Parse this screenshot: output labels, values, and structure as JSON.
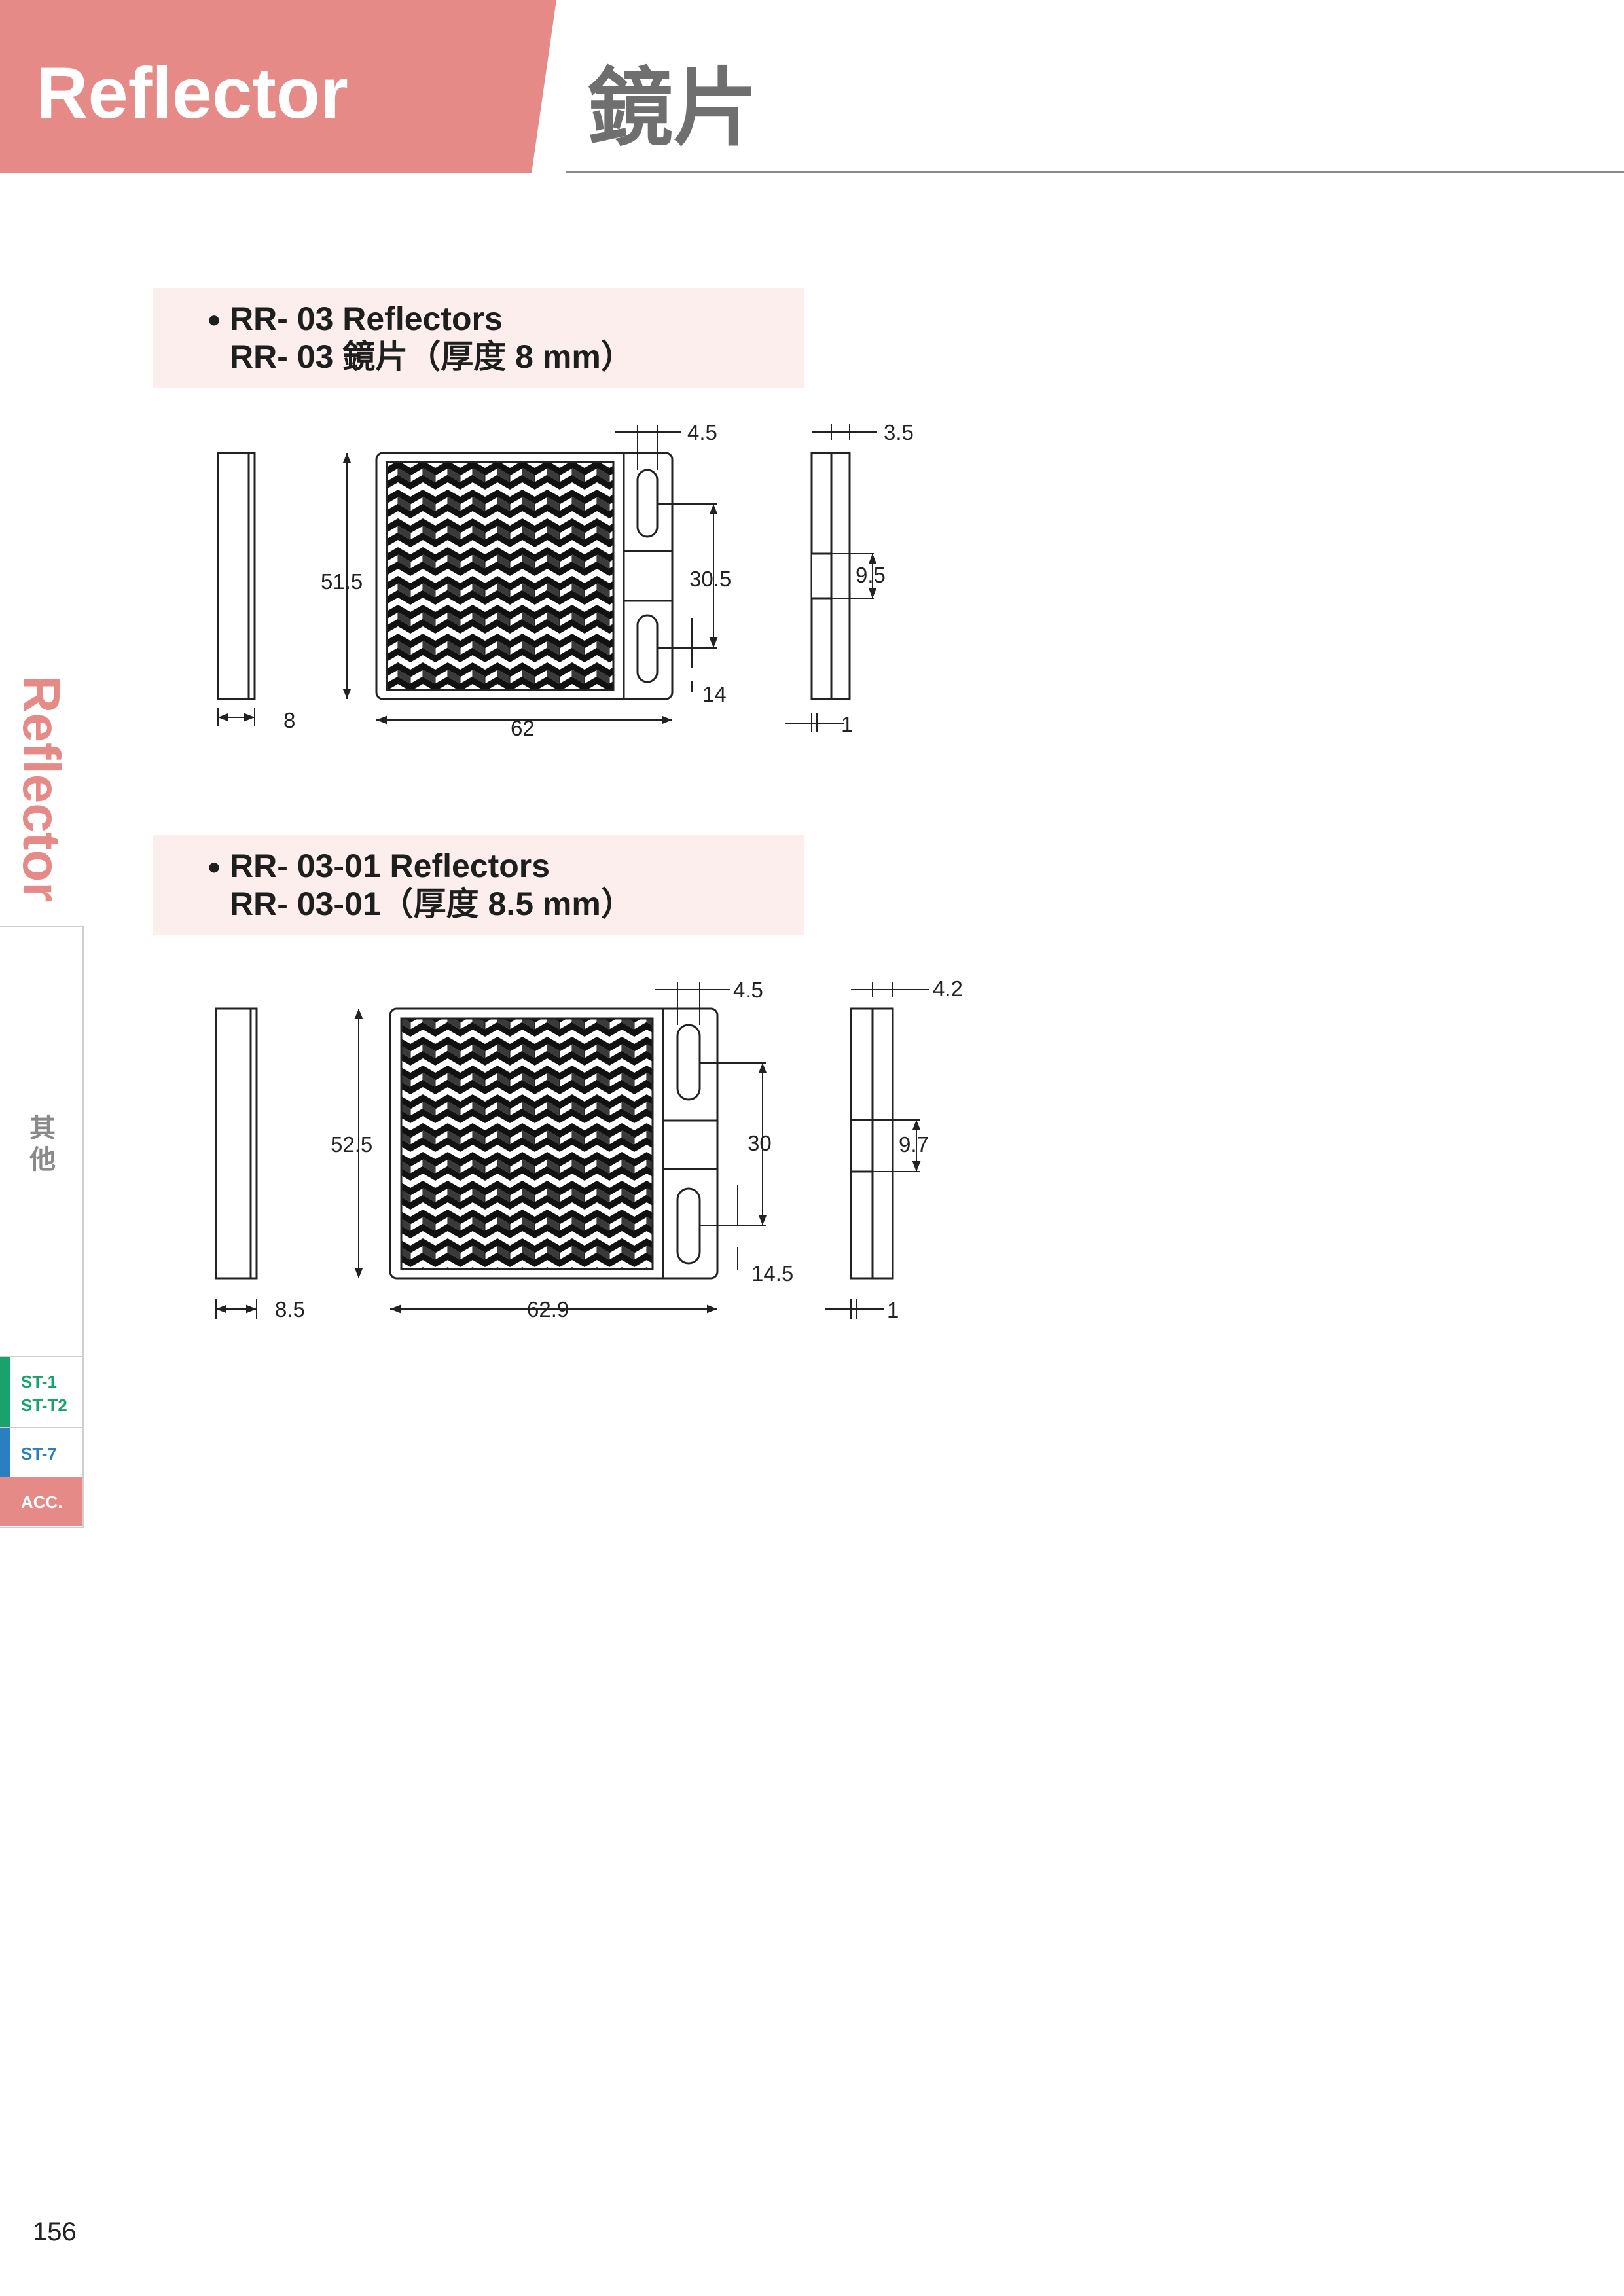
{
  "header": {
    "title_en": "Reflector",
    "title_zh": "鏡片"
  },
  "sections": [
    {
      "title_line1": "RR- 03 Reflectors",
      "title_line2": "RR- 03 鏡片（厚度 8 mm）",
      "dims": {
        "side_width": "8",
        "height": "51.5",
        "width": "62",
        "slot_width": "4.5",
        "slot_pitch": "30.5",
        "slot_offset": "14",
        "edge_thickness": "3.5",
        "notch": "9.5",
        "lip": "1"
      }
    },
    {
      "title_line1": "RR- 03-01 Reflectors",
      "title_line2": "RR- 03-01（厚度 8.5 mm）",
      "dims": {
        "side_width": "8.5",
        "height": "52.5",
        "width": "62.9",
        "slot_width": "4.5",
        "slot_pitch": "30",
        "slot_offset": "14.5",
        "edge_thickness": "4.2",
        "notch": "9.7",
        "lip": "1"
      }
    }
  ],
  "sidebar": {
    "vertical_label": "Reflector",
    "other_label": "其他",
    "tabs": [
      "ST-1",
      "ST-T2",
      "ST-7",
      "ACC."
    ]
  },
  "page_number": "156"
}
